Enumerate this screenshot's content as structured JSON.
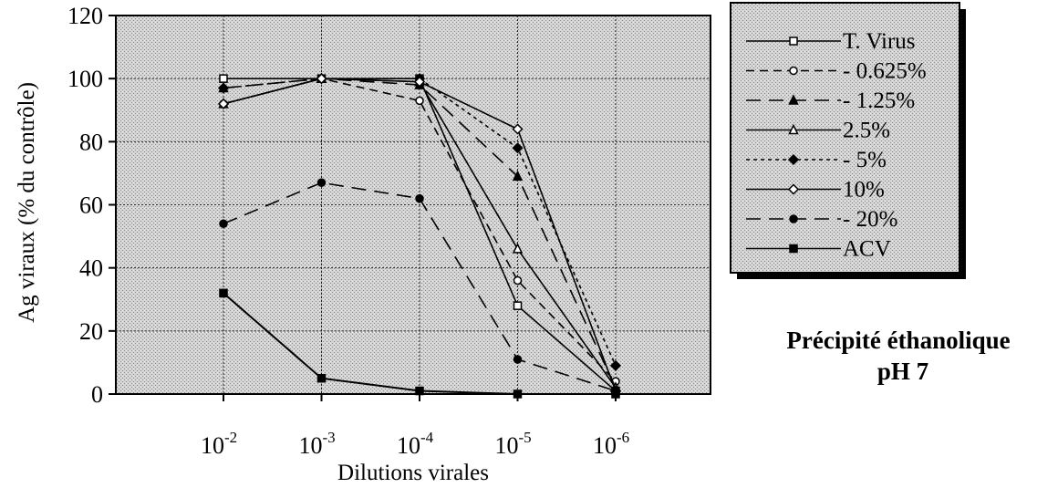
{
  "chart_data": {
    "type": "line",
    "title": "",
    "xlabel": "Dilutions virales",
    "ylabel": "Ag viraux (% du contrôle)",
    "categories": [
      {
        "base": "10",
        "exp": "-2"
      },
      {
        "base": "10",
        "exp": "-3"
      },
      {
        "base": "10",
        "exp": "-4"
      },
      {
        "base": "10",
        "exp": "-5"
      },
      {
        "base": "10",
        "exp": "-6"
      }
    ],
    "ylim": [
      0,
      120
    ],
    "yticks": [
      "0",
      "20",
      "40",
      "60",
      "80",
      "100",
      "120"
    ],
    "grid": true,
    "legend_position": "top-right",
    "series": [
      {
        "name": "T. Virus",
        "marker": "square-open",
        "dash": "solid",
        "values": [
          100,
          100,
          100,
          28,
          1
        ]
      },
      {
        "name": "- 0.625%",
        "marker": "circle-open",
        "dash": "dash",
        "values": [
          92,
          100,
          93,
          36,
          4
        ]
      },
      {
        "name": "- 1.25%",
        "marker": "triangle-filled",
        "dash": "longdash",
        "values": [
          97,
          100,
          98,
          69,
          2
        ]
      },
      {
        "name": "2.5%",
        "marker": "triangle-open",
        "dash": "solid",
        "values": [
          92,
          100,
          99,
          46,
          2
        ]
      },
      {
        "name": "- 5%",
        "marker": "diamond-filled",
        "dash": "dot",
        "values": [
          97,
          100,
          100,
          78,
          9
        ]
      },
      {
        "name": "10%",
        "marker": "diamond-open",
        "dash": "solid",
        "values": [
          92,
          100,
          99,
          84,
          1
        ]
      },
      {
        "name": "- 20%",
        "marker": "circle-filled",
        "dash": "longdash",
        "values": [
          54,
          67,
          62,
          11,
          1
        ]
      },
      {
        "name": "ACV",
        "marker": "square-filled",
        "dash": "solid",
        "values": [
          32,
          5,
          1,
          0,
          0
        ]
      }
    ]
  },
  "caption": {
    "line1": "Précipité éthanolique",
    "line2": "pH 7"
  }
}
